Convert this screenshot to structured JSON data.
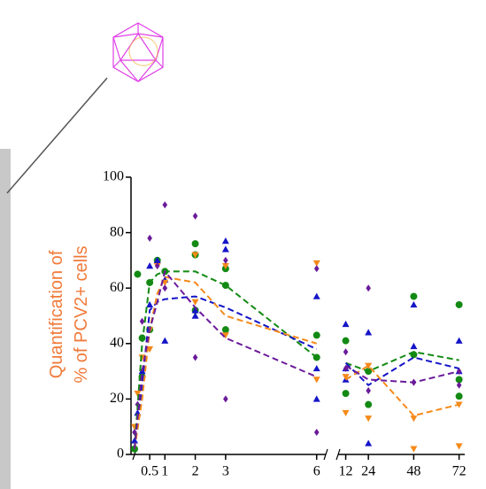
{
  "chart_data": {
    "type": "scatter-line",
    "y_label_lines": [
      "Quantification of",
      "% of PCV2+ cells"
    ],
    "ylim": [
      0,
      100
    ],
    "yticks": [
      0,
      20,
      40,
      60,
      80,
      100
    ],
    "xlim_segments": [
      [
        0,
        6.3
      ],
      [
        8,
        75
      ]
    ],
    "xticks": [
      0.5,
      1,
      2,
      3,
      6,
      12,
      24,
      48,
      72
    ],
    "x": [
      0,
      0.25,
      0.5,
      0.75,
      1,
      2,
      3,
      6,
      12,
      24,
      48,
      72
    ],
    "series": [
      {
        "color": "#138a13",
        "marker": "circle",
        "values": [
          2,
          40,
          62,
          65,
          66,
          66,
          61,
          35,
          33,
          30,
          37,
          34
        ],
        "point_x": [
          0,
          0.1,
          0.25,
          0.25,
          0.5,
          0.5,
          0.75,
          1,
          2,
          2,
          2,
          3,
          3,
          3,
          6,
          6,
          12,
          12,
          24,
          24,
          48,
          48,
          72,
          72,
          72
        ],
        "point_y": [
          2,
          65,
          42,
          28,
          62,
          45,
          70,
          66,
          76,
          72,
          52,
          67,
          61,
          45,
          43,
          35,
          41,
          22,
          30,
          18,
          57,
          36,
          54,
          27,
          21
        ]
      },
      {
        "color": "#1515c8",
        "marker": "triangle-up",
        "values": [
          2,
          25,
          52,
          55,
          56,
          57,
          53,
          38,
          33,
          25,
          35,
          31
        ],
        "point_x": [
          0,
          0.1,
          0.25,
          0.5,
          0.5,
          0.75,
          1,
          1,
          2,
          2,
          3,
          3,
          6,
          6,
          6,
          12,
          12,
          12,
          24,
          24,
          48,
          48,
          72,
          72
        ],
        "point_y": [
          5,
          15,
          30,
          68,
          54,
          70,
          63,
          41,
          52,
          50,
          77,
          74,
          57,
          31,
          20,
          47,
          31,
          27,
          44,
          4,
          54,
          39,
          41,
          30
        ]
      },
      {
        "color": "#f58a1a",
        "marker": "triangle-down",
        "values": [
          2,
          20,
          45,
          58,
          64,
          62,
          50,
          40,
          27,
          32,
          14,
          18
        ],
        "point_x": [
          0,
          0.1,
          0.25,
          0.5,
          0.5,
          0.75,
          1,
          2,
          2,
          3,
          3,
          6,
          6,
          12,
          12,
          24,
          24,
          48,
          48,
          72,
          72
        ],
        "point_y": [
          10,
          22,
          35,
          45,
          38,
          68,
          62,
          72,
          55,
          68,
          43,
          69,
          27,
          28,
          15,
          32,
          13,
          13,
          2,
          18,
          3
        ]
      },
      {
        "color": "#6a1a9a",
        "marker": "diamond",
        "values": [
          2,
          30,
          45,
          55,
          66,
          53,
          42,
          28,
          32,
          27,
          26,
          30
        ],
        "point_x": [
          0,
          0.1,
          0.25,
          0.5,
          0.75,
          1,
          1,
          2,
          2,
          3,
          3,
          6,
          6,
          12,
          12,
          24,
          24,
          48,
          48,
          72,
          72
        ],
        "point_y": [
          8,
          18,
          48,
          78,
          68,
          90,
          60,
          86,
          35,
          70,
          20,
          67,
          8,
          37,
          31,
          60,
          23,
          26,
          26,
          30,
          25
        ]
      }
    ]
  }
}
